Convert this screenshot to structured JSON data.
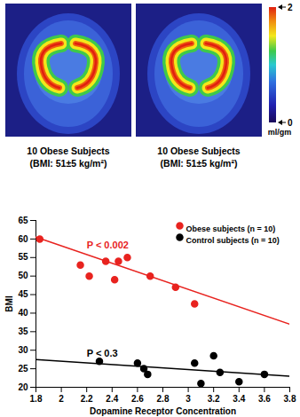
{
  "chart_data": {
    "type": "scatter",
    "x_label": "Dopamine Receptor Concentration",
    "y_label": "BMI",
    "xlim": [
      1.8,
      3.8
    ],
    "xticks": [
      1.8,
      2,
      2.2,
      2.4,
      2.6,
      2.8,
      3,
      3.2,
      3.4,
      3.6,
      3.8
    ],
    "ylim": [
      20,
      65
    ],
    "yticks": [
      20,
      25,
      30,
      35,
      40,
      45,
      50,
      55,
      60,
      65
    ],
    "legend": "top-right",
    "series": [
      {
        "name": "Obese subjects (n = 10)",
        "color": "#e8231f",
        "marker": "circle",
        "x": [
          1.83,
          2.15,
          2.22,
          2.35,
          2.42,
          2.45,
          2.52,
          2.7,
          2.9,
          3.05
        ],
        "values": [
          60,
          53,
          50,
          54,
          49,
          54,
          55,
          50,
          47,
          42.5
        ],
        "trend": {
          "x": [
            1.8,
            3.8
          ],
          "values": [
            60.5,
            37
          ]
        },
        "annotation": "P < 0.002"
      },
      {
        "name": "Control subjects (n = 10)",
        "color": "#000000",
        "marker": "circle",
        "x": [
          2.3,
          2.6,
          2.65,
          2.68,
          3.05,
          3.1,
          3.2,
          3.25,
          3.4,
          3.6
        ],
        "values": [
          27,
          26.5,
          25,
          23.5,
          26.5,
          21,
          28.5,
          24,
          21.5,
          23.5
        ],
        "trend": {
          "x": [
            1.8,
            3.8
          ],
          "values": [
            27.5,
            23
          ]
        },
        "annotation": "P < 0.3"
      }
    ]
  },
  "brain_images": [
    {
      "caption": "10 Obese Subjects",
      "subcaption": "(BMI: 51±5 kg/m²)"
    },
    {
      "caption": "10 Obese Subjects",
      "subcaption": "(BMI: 51±5 kg/m²)"
    }
  ],
  "color_bar": {
    "range": [
      0,
      2
    ],
    "ticks": [
      0,
      2
    ],
    "label": "ml/gm"
  }
}
